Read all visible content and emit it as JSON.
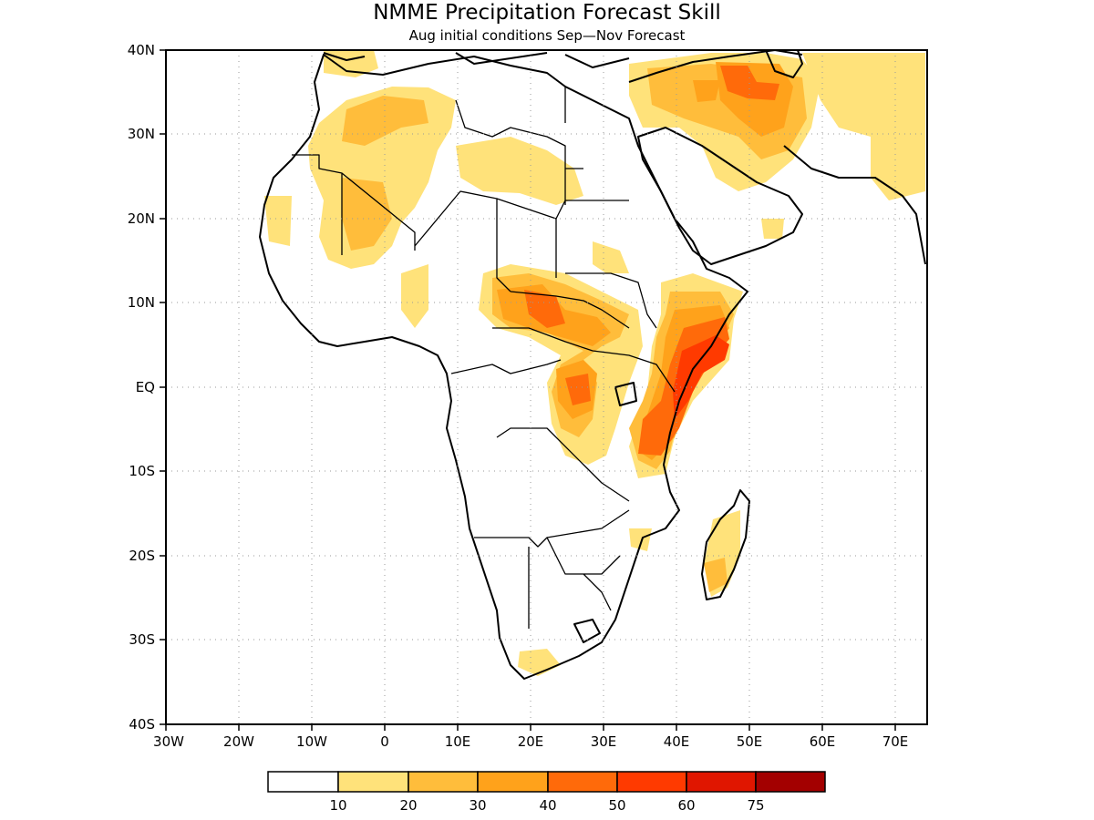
{
  "title": "NMME Precipitation Forecast Skill",
  "subtitle": "Aug initial conditions  Sep—Nov Forecast",
  "map": {
    "x_ticks": [
      "30W",
      "20W",
      "10W",
      "0",
      "10E",
      "20E",
      "30E",
      "40E",
      "50E",
      "60E",
      "70E"
    ],
    "y_ticks": [
      "40N",
      "30N",
      "20N",
      "10N",
      "EQ",
      "10S",
      "20S",
      "30S",
      "40S"
    ],
    "lon_range": [
      -30,
      75
    ],
    "lat_range": [
      -40,
      40
    ],
    "grid": "dotted"
  },
  "legend": {
    "labels": [
      "10",
      "20",
      "30",
      "40",
      "50",
      "60",
      "75"
    ],
    "colors": [
      "#ffffff",
      "#ffe27a",
      "#ffbd3b",
      "#ffa21b",
      "#ff6a0a",
      "#ff3a00",
      "#e01600",
      "#a30000"
    ]
  }
}
